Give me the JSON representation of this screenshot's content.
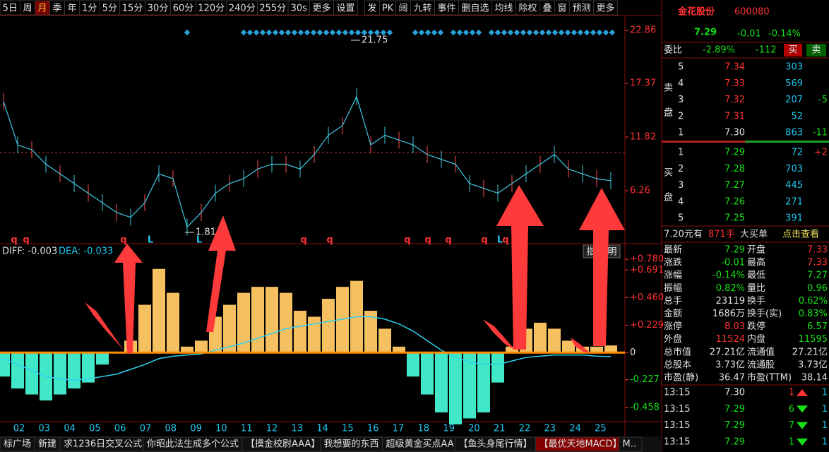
{
  "toolbar": {
    "tabs": [
      "5日",
      "周",
      "月",
      "季",
      "年",
      "1分",
      "5分",
      "15分",
      "30分",
      "60分",
      "120分",
      "240分",
      "255分",
      "30s",
      "更多",
      "设置",
      "发",
      "PK",
      "阔",
      "九转",
      "事件",
      "删自选",
      "均线",
      "除权",
      "叠",
      "窗",
      "预测",
      "更多"
    ],
    "active_index": 2
  },
  "main_chart": {
    "ylim": [
      0.77,
      24.4
    ],
    "yticks": [
      22.86,
      17.37,
      11.82,
      6.26
    ],
    "close": [
      15.5,
      11,
      10.5,
      9,
      8,
      7,
      6,
      5,
      4,
      3.5,
      5,
      8,
      7.5,
      2.5,
      4,
      6,
      7,
      7.5,
      8.5,
      9,
      9,
      8.5,
      10,
      12,
      13,
      16,
      11,
      12,
      11.5,
      11,
      10,
      9.5,
      9,
      7,
      6.5,
      6,
      7,
      8,
      9,
      10,
      8.5,
      8,
      7.5,
      7.29
    ],
    "high_label": "21.75",
    "low_label": "1.81",
    "signals": [
      "q",
      "q",
      "q",
      "L",
      "L",
      "q",
      "q",
      "q",
      "q",
      "q",
      "q",
      "L",
      "q"
    ]
  },
  "macd": {
    "diff": "DIFF: -0.003",
    "dea": "DEA: -0.033",
    "buttons": [
      "指",
      "明"
    ],
    "ylim": [
      -0.577,
      0.911
    ],
    "yticks": [
      {
        "value": 0.78,
        "label": "+0.780"
      },
      {
        "value": 0.691,
        "label": "+0.691"
      },
      {
        "value": 0.46,
        "label": "+0.460"
      },
      {
        "value": 0.229,
        "label": "+0.229"
      },
      0,
      {
        "value": -0.227,
        "label": "-0.227"
      },
      {
        "value": -0.458,
        "label": "-0.458"
      }
    ],
    "hist": [
      -0.2,
      -0.3,
      -0.35,
      -0.4,
      -0.35,
      -0.3,
      -0.25,
      -0.1,
      0,
      0.1,
      0.4,
      0.7,
      0.5,
      0.05,
      0.1,
      0.3,
      0.4,
      0.5,
      0.55,
      0.55,
      0.5,
      0.35,
      0.3,
      0.45,
      0.55,
      0.6,
      0.35,
      0.2,
      0.05,
      -0.2,
      -0.35,
      -0.5,
      -0.6,
      -0.55,
      -0.5,
      -0.25,
      0.05,
      0.2,
      0.25,
      0.2,
      0.1,
      0.05,
      0.05,
      0.06
    ],
    "dea_line": [
      -0.05,
      -0.1,
      -0.15,
      -0.2,
      -0.22,
      -0.23,
      -0.22,
      -0.2,
      -0.18,
      -0.14,
      -0.1,
      -0.05,
      -0.03,
      -0.02,
      -0.01,
      0.02,
      0.05,
      0.08,
      0.12,
      0.16,
      0.2,
      0.22,
      0.24,
      0.26,
      0.28,
      0.3,
      0.3,
      0.28,
      0.24,
      0.18,
      0.1,
      0.02,
      -0.04,
      -0.08,
      -0.1,
      -0.1,
      -0.07,
      -0.04,
      -0.03,
      -0.02,
      -0.02,
      -0.02,
      -0.03,
      -0.033
    ]
  },
  "x_axis": {
    "labels": [
      "02",
      "03",
      "04",
      "05",
      "06",
      "07",
      "08",
      "09",
      "10",
      "11",
      "12",
      "13",
      "14",
      "15",
      "16",
      "17",
      "18",
      "19",
      "20",
      "21",
      "22",
      "23",
      "24",
      "25"
    ]
  },
  "quote": {
    "name": "金花股份",
    "code": "600080",
    "price": "7.29",
    "change": "-0.01",
    "change_pct": "-0.14%",
    "weibi_label": "委比",
    "weibi": "-2.89%",
    "weicha": "-112",
    "buy_btn": "买",
    "sell_btn": "卖",
    "ask_label": [
      "卖",
      "盘"
    ],
    "bid_label": [
      "买",
      "盘"
    ],
    "asks": [
      {
        "level": "5",
        "price": "7.34",
        "volume": "303",
        "tone": "up"
      },
      {
        "level": "4",
        "price": "7.33",
        "volume": "569",
        "tone": "up"
      },
      {
        "level": "3",
        "price": "7.32",
        "volume": "207",
        "delta": "-5",
        "tone": "up"
      },
      {
        "level": "2",
        "price": "7.31",
        "volume": "52",
        "tone": "up"
      },
      {
        "level": "1",
        "price": "7.30",
        "volume": "863",
        "delta": "-11",
        "tone": "flat"
      }
    ],
    "bids": [
      {
        "level": "1",
        "price": "7.29",
        "volume": "72",
        "delta": "+2",
        "tone": "down"
      },
      {
        "level": "2",
        "price": "7.28",
        "volume": "703",
        "tone": "down"
      },
      {
        "level": "3",
        "price": "7.27",
        "volume": "445",
        "tone": "down"
      },
      {
        "level": "4",
        "price": "7.26",
        "volume": "271",
        "tone": "down"
      },
      {
        "level": "5",
        "price": "7.25",
        "volume": "391",
        "tone": "down"
      }
    ],
    "big_order": {
      "text": "7.20元有",
      "lots": "871手",
      "type": "大买单",
      "link": "点击查看"
    },
    "stats": [
      {
        "label": "最新",
        "value": "7.29",
        "t1": "down",
        "label2": "开盘",
        "value2": "7.33",
        "t2": "up"
      },
      {
        "label": "涨跌",
        "value": "-0.01",
        "t1": "down",
        "label2": "最高",
        "value2": "7.33",
        "t2": "up"
      },
      {
        "label": "涨幅",
        "value": "-0.14%",
        "t1": "down",
        "label2": "最低",
        "value2": "7.27",
        "t2": "down"
      },
      {
        "label": "振幅",
        "value": "0.82%",
        "t1": "down",
        "label2": "量比",
        "value2": "0.96",
        "t2": "down"
      },
      {
        "label": "总手",
        "value": "23119",
        "t1": "flat",
        "label2": "换手",
        "value2": "0.62%",
        "t2": "down"
      },
      {
        "label": "金额",
        "value": "1686万",
        "t1": "flat",
        "label2": "换手(实)",
        "value2": "0.83%",
        "t2": "down"
      },
      {
        "label": "涨停",
        "value": "8.03",
        "t1": "up",
        "label2": "跌停",
        "value2": "6.57",
        "t2": "down"
      },
      {
        "label": "外盘",
        "value": "11524",
        "t1": "up",
        "label2": "内盘",
        "value2": "11595",
        "t2": "down"
      },
      {
        "label": "总市值",
        "value": "27.21亿",
        "t1": "flat",
        "label2": "流通值",
        "value2": "27.21亿",
        "t2": "flat"
      },
      {
        "label": "总股本",
        "value": "3.73亿",
        "t1": "flat",
        "label2": "流通股",
        "value2": "3.73亿",
        "t2": "flat"
      },
      {
        "label": "市盈(静)",
        "value": "36.47",
        "t1": "flat",
        "label2": "市盈(TTM)",
        "value2": "38.14",
        "t2": "flat"
      }
    ],
    "trades": [
      {
        "time": "13:15",
        "price": "7.30",
        "tone": "flat",
        "volume": "1",
        "dir": "up",
        "count": "1"
      },
      {
        "time": "13:15",
        "price": "7.29",
        "tone": "down",
        "volume": "6",
        "dir": "down",
        "count": "1"
      },
      {
        "time": "13:15",
        "price": "7.29",
        "tone": "down",
        "volume": "7",
        "dir": "down",
        "count": "1"
      },
      {
        "time": "13:15",
        "price": "7.29",
        "tone": "down",
        "volume": "1",
        "dir": "down",
        "count": "1"
      }
    ]
  },
  "bottom_bar": {
    "tabs": [
      "标广场",
      "新建",
      "求1236日交叉公式",
      "你昭此法生成多个公式",
      "【摸金校尉AAA】",
      "我想要的东西",
      "超级黄金买点AA",
      "【鱼头身尾行情】",
      "【最优天地MACD】",
      "M.."
    ]
  }
}
